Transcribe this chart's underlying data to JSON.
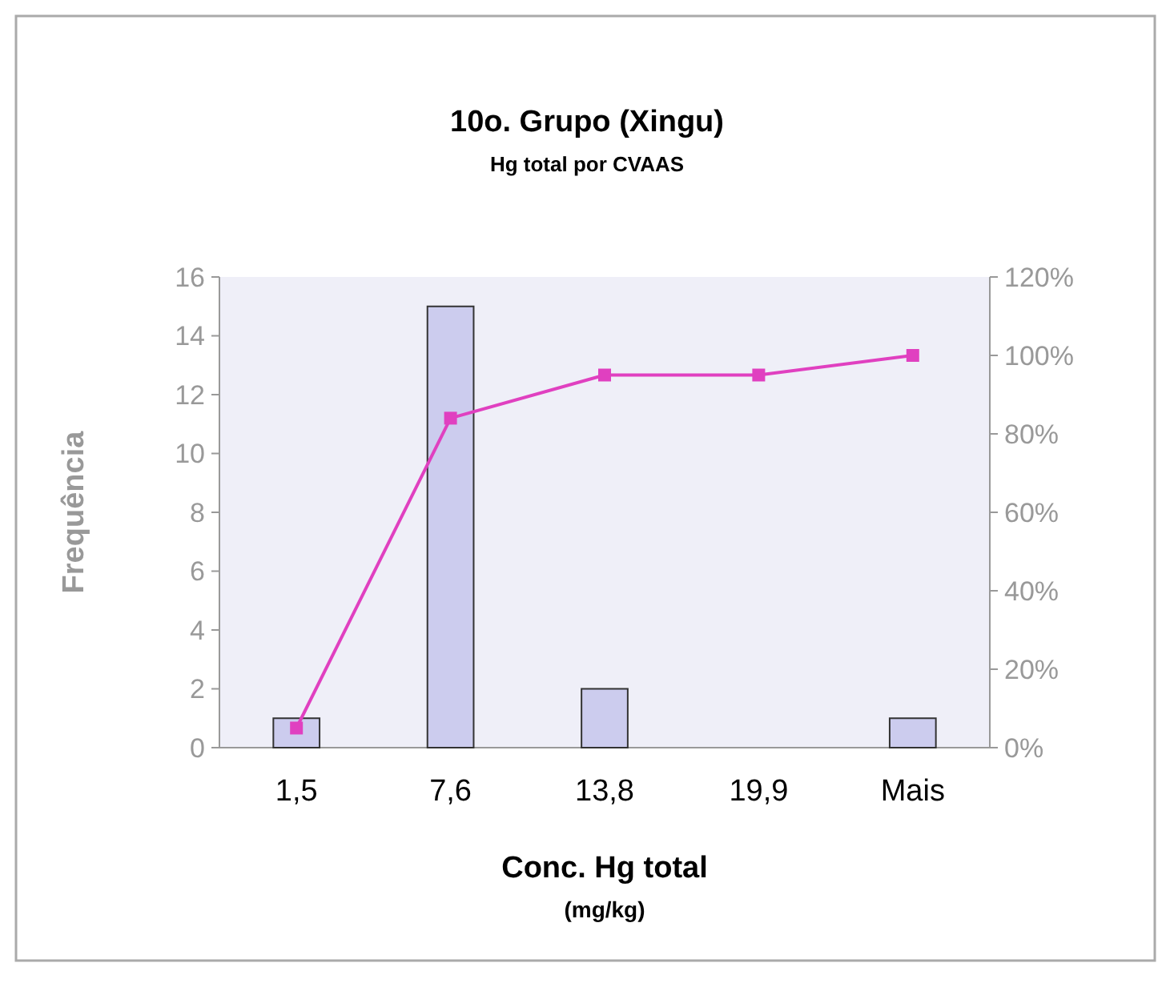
{
  "chart_data": {
    "type": "bar",
    "title": "10o. Grupo (Xingu)",
    "subtitle": "Hg total por CVAAS",
    "xlabel": "Conc. Hg total\n(mg/kg)",
    "ylabel": "Frequência",
    "categories": [
      "1,5",
      "7,6",
      "13,8",
      "19,9",
      "Mais"
    ],
    "series": [
      {
        "color": "#ccccee",
        "values": [
          1,
          15,
          2,
          0,
          1
        ]
      },
      {
        "type": "line",
        "axis": "y2",
        "color": "#e040c0",
        "values": [
          5,
          84,
          95,
          95,
          100
        ]
      }
    ],
    "ylim": [
      0,
      16
    ],
    "yticks": [
      0,
      2,
      4,
      6,
      8,
      10,
      12,
      14,
      16
    ],
    "y2lim": [
      0,
      120
    ],
    "y2ticks": [
      {
        "value": 0,
        "label": "0%"
      },
      {
        "value": 20,
        "label": "20%"
      },
      {
        "value": 40,
        "label": "40%"
      },
      {
        "value": 60,
        "label": "60%"
      },
      {
        "value": 80,
        "label": "80%"
      },
      {
        "value": 100,
        "label": "100%"
      },
      {
        "value": 120,
        "label": "120%"
      }
    ],
    "marker": "square",
    "grid": false
  }
}
